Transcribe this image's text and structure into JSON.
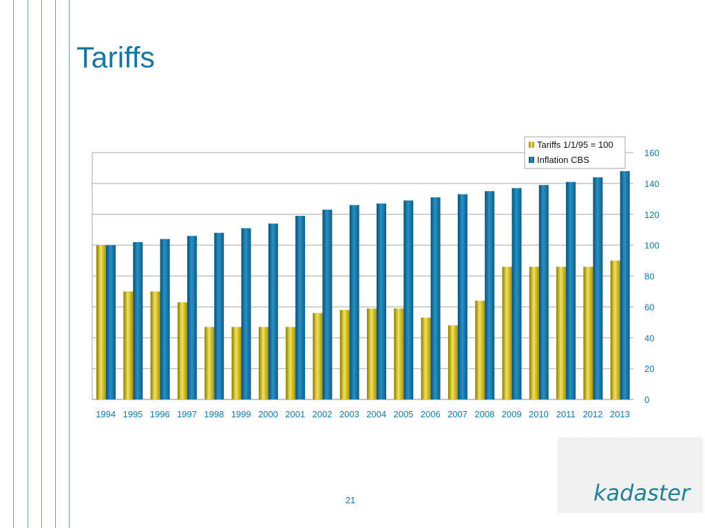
{
  "slide": {
    "title": "Tariffs",
    "page_number": "21"
  },
  "logo": {
    "text": "kadaster"
  },
  "colors": {
    "title": "#1478a0",
    "decor_lines": "#5aa3c8",
    "tariffs": "#d2b800",
    "inflation": "#0f74a0"
  },
  "chart_data": {
    "type": "bar",
    "categories": [
      "1994",
      "1995",
      "1996",
      "1997",
      "1998",
      "1999",
      "2000",
      "2001",
      "2002",
      "2003",
      "2004",
      "2005",
      "2006",
      "2007",
      "2008",
      "2009",
      "2010",
      "2011",
      "2012",
      "2013"
    ],
    "series": [
      {
        "name": "Tariffs 1/1/95 = 100",
        "color": "#d2b800",
        "values": [
          100,
          70,
          70,
          63,
          47,
          47,
          47,
          47,
          56,
          58,
          59,
          59,
          53,
          48,
          64,
          86,
          86,
          86,
          86,
          90
        ]
      },
      {
        "name": "Inflation CBS",
        "color": "#0f74a0",
        "values": [
          100,
          102,
          104,
          106,
          108,
          111,
          114,
          119,
          123,
          126,
          127,
          129,
          131,
          133,
          135,
          137,
          139,
          141,
          144,
          148
        ]
      }
    ],
    "ylim": [
      0,
      160
    ],
    "yticks": [
      "0",
      "20",
      "40",
      "60",
      "80",
      "100",
      "120",
      "140",
      "160"
    ],
    "y_axis_side": "right",
    "grid": true,
    "legend": "top-right",
    "title": "",
    "xlabel": "",
    "ylabel": ""
  }
}
